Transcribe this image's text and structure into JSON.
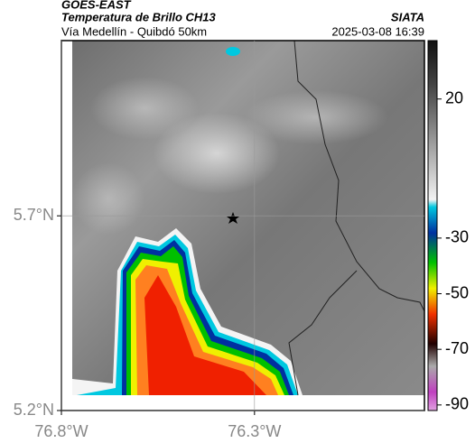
{
  "map": {
    "source": "GOES-EAST",
    "title": "Temperatura de Brillo CH13",
    "agency": "SIATA",
    "subtitle": "Vía Medellín - Quibdó 50km",
    "timestamp": "2025-03-08 16:39",
    "xlim": [
      -76.8,
      -75.86
    ],
    "xticks": [
      {
        "value": -76.8,
        "label": "76.8°W"
      },
      {
        "value": -76.3,
        "label": "76.3°W"
      }
    ],
    "ylim": [
      5.2,
      6.15
    ],
    "yticks": [
      {
        "value": 5.2,
        "label": "5.2°N"
      },
      {
        "value": 5.7,
        "label": "5.7°N"
      }
    ],
    "colorbar": {
      "lim": [
        -92,
        41
      ],
      "ticks": [
        20,
        -30,
        -50,
        -70,
        -90
      ]
    }
  }
}
